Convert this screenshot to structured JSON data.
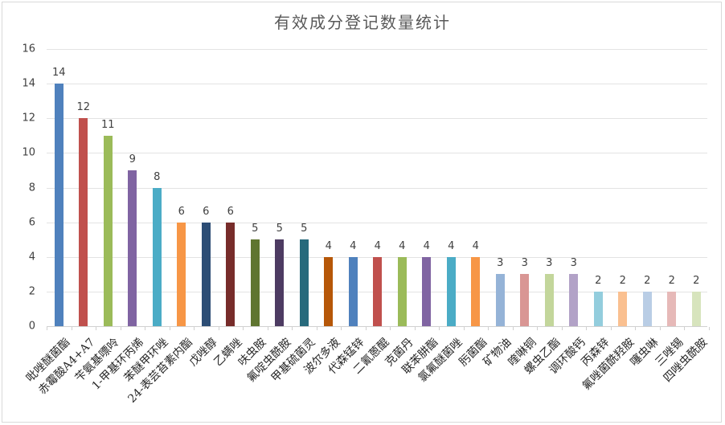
{
  "chart_data": {
    "type": "bar",
    "title": "有效成分登记数量统计",
    "xlabel": "",
    "ylabel": "",
    "ylim": [
      0,
      16
    ],
    "yticks": [
      0,
      2,
      4,
      6,
      8,
      10,
      12,
      14,
      16
    ],
    "grid": true,
    "legend": "none",
    "data_labels": true,
    "categories": [
      "吡唑醚菌酯",
      "赤霉酸A4+A7",
      "苄氨基嘌呤",
      "1-甲基环丙烯",
      "苯醚甲环唑",
      "24-表芸苔素内酯",
      "戊唑醇",
      "乙螨唑",
      "呋虫胺",
      "氟啶虫酰胺",
      "甲基硫菌灵",
      "波尔多液",
      "代森锰锌",
      "二氰蒽醌",
      "克菌丹",
      "联苯肼酯",
      "氯氟醚菌唑",
      "肟菌酯",
      "矿物油",
      "喹啉铜",
      "螺虫乙酯",
      "调环酸钙",
      "丙森锌",
      "氟唑菌酰羟胺",
      "噻虫啉",
      "三唑锡",
      "四唑虫酰胺"
    ],
    "values": [
      14,
      12,
      11,
      9,
      8,
      6,
      6,
      6,
      5,
      5,
      5,
      4,
      4,
      4,
      4,
      4,
      4,
      4,
      3,
      3,
      3,
      3,
      2,
      2,
      2,
      2,
      2
    ],
    "colors": [
      "#4f81bd",
      "#c0504d",
      "#9bbb59",
      "#8064a2",
      "#4bacc6",
      "#f79646",
      "#2c4d75",
      "#772c2a",
      "#5f7530",
      "#4d3b62",
      "#276a7c",
      "#b65708",
      "#4f81bd",
      "#c0504d",
      "#9bbb59",
      "#8064a2",
      "#4bacc6",
      "#f79646",
      "#95b3d7",
      "#d99694",
      "#c3d69b",
      "#b2a2c7",
      "#93cddd",
      "#fac090",
      "#b9cde5",
      "#e6b9b8",
      "#d7e4bd"
    ]
  }
}
